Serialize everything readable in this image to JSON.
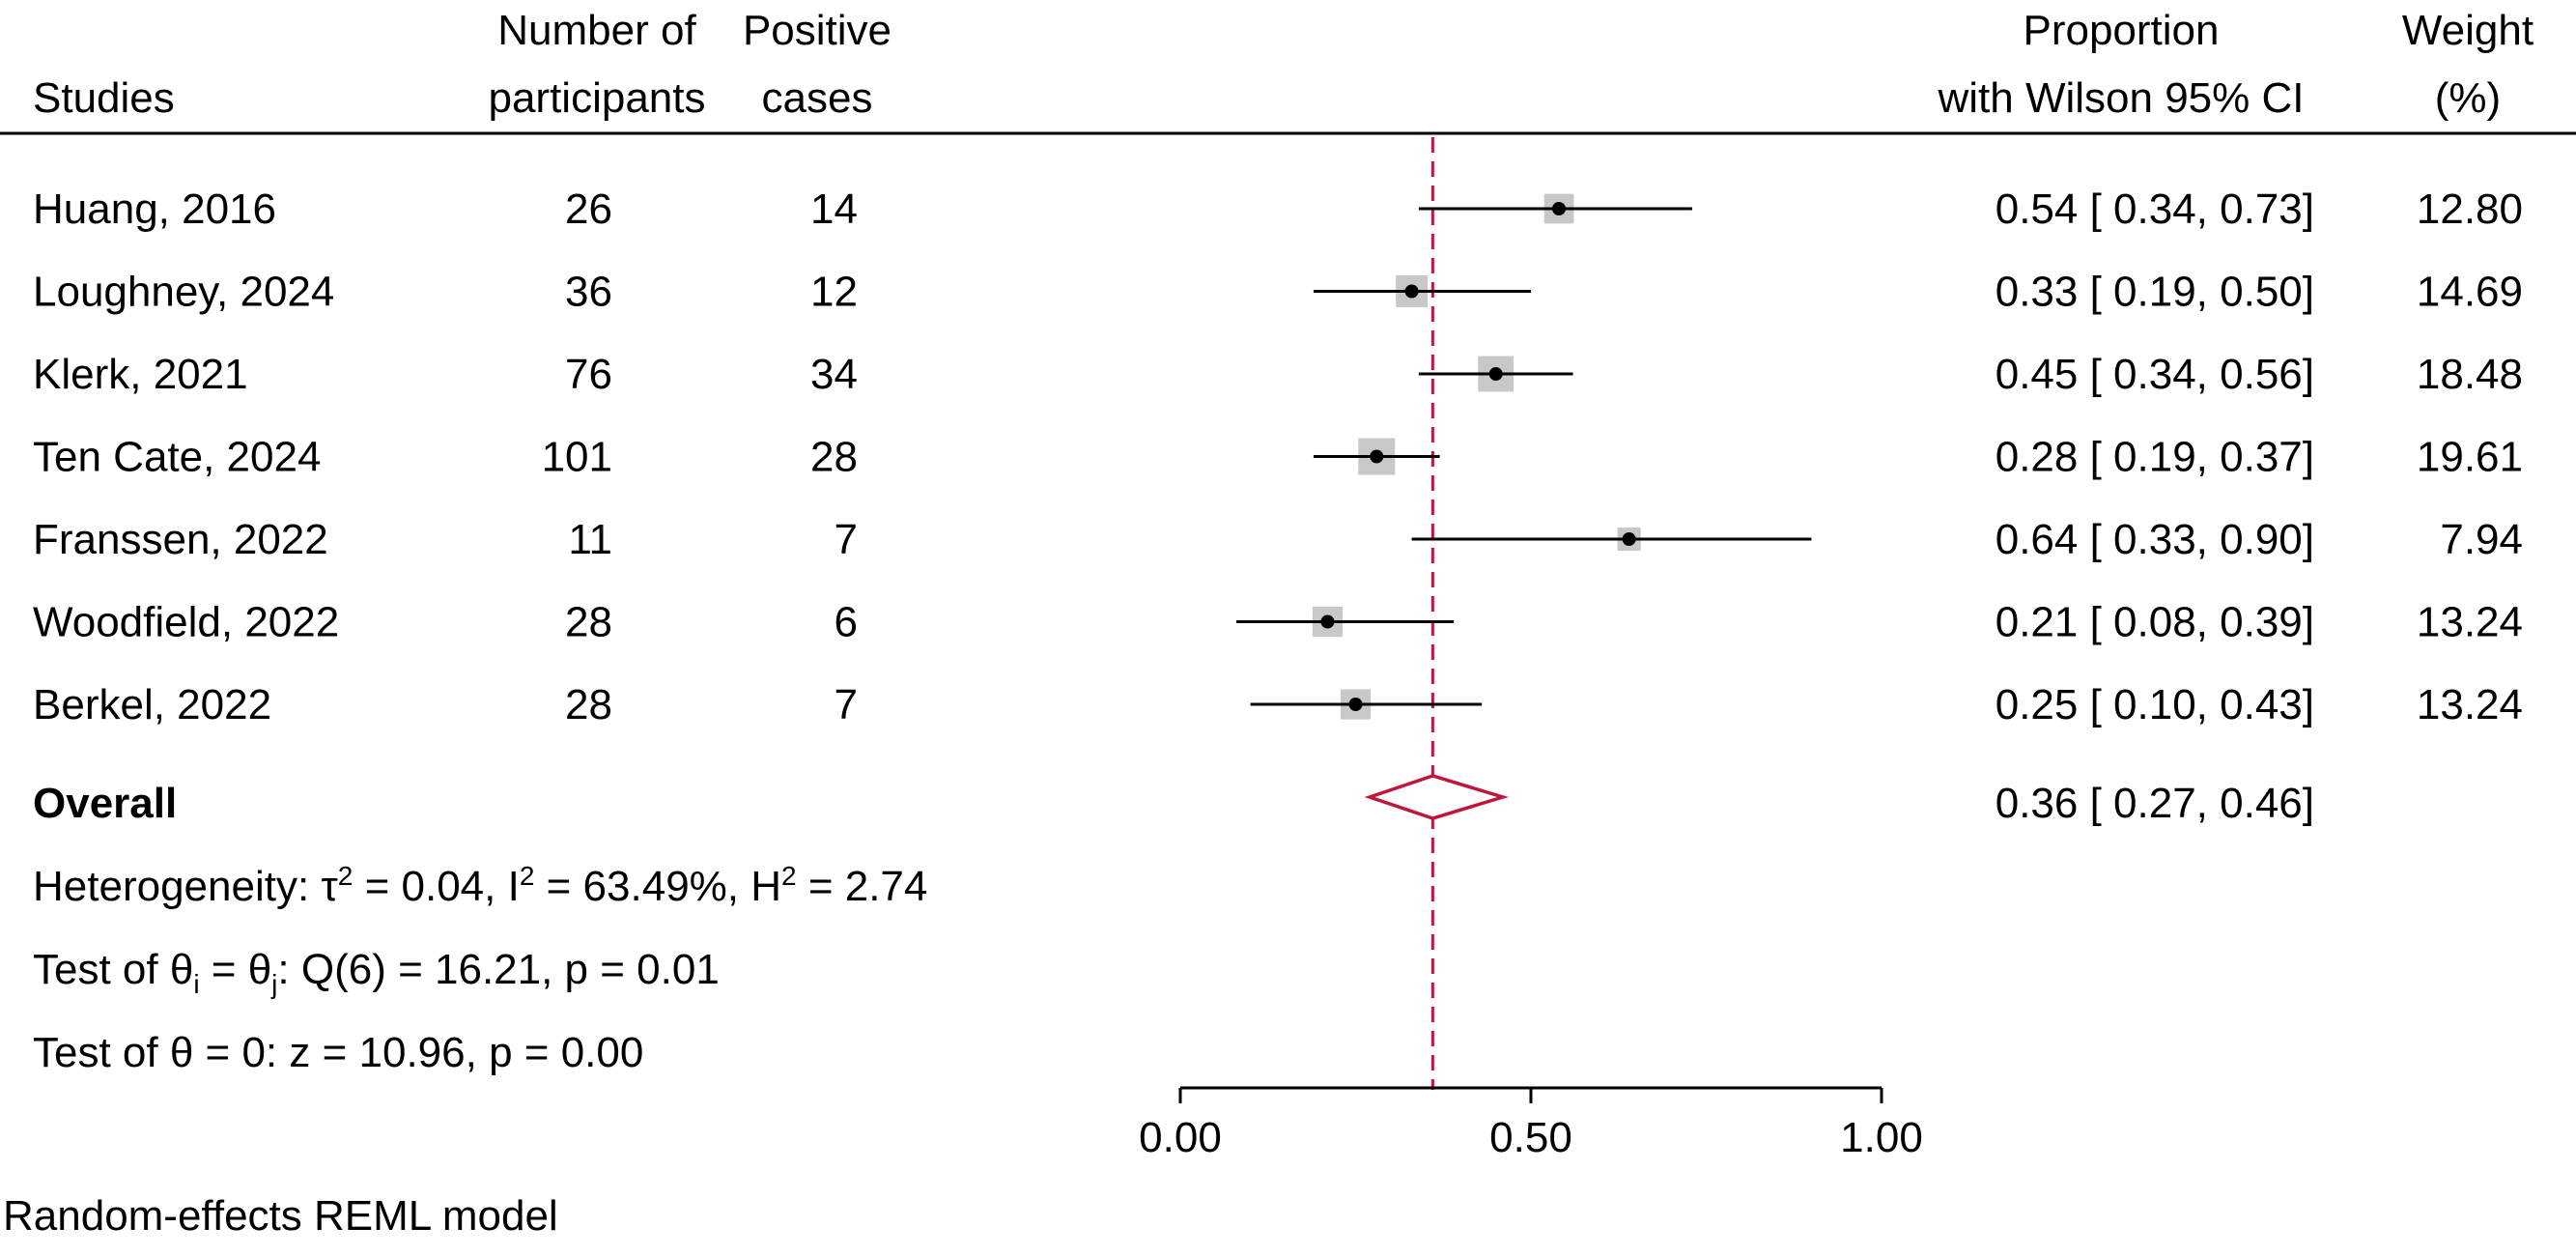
{
  "headers": {
    "studies": "Studies",
    "participants_1": "Number of",
    "participants_2": "participants",
    "cases_1": "Positive",
    "cases_2": "cases",
    "ci_1": "Proportion",
    "ci_2": "with Wilson 95% CI",
    "weight_1": "Weight",
    "weight_2": "(%)"
  },
  "chart_data": {
    "type": "forest",
    "xlim": [
      0,
      1
    ],
    "xticks": [
      0,
      0.5,
      1
    ],
    "xtick_labels": [
      "0.00",
      "0.50",
      "1.00"
    ],
    "reference_line": 0.36,
    "colors": {
      "ci_line": "#000000",
      "weight_box": "#c8c8c8",
      "overall_diamond": "#c0163d",
      "reference_line": "#c0163d"
    },
    "studies": [
      {
        "name": "Huang, 2016",
        "participants": "26",
        "cases": "14",
        "estimate": 0.54,
        "lower": 0.34,
        "upper": 0.73,
        "ci_text": "0.54 [ 0.34,  0.73]",
        "weight": 12.8,
        "weight_text": "12.80"
      },
      {
        "name": "Loughney, 2024",
        "participants": "36",
        "cases": "12",
        "estimate": 0.33,
        "lower": 0.19,
        "upper": 0.5,
        "ci_text": "0.33 [ 0.19,  0.50]",
        "weight": 14.69,
        "weight_text": "14.69"
      },
      {
        "name": "Klerk, 2021",
        "participants": "76",
        "cases": "34",
        "estimate": 0.45,
        "lower": 0.34,
        "upper": 0.56,
        "ci_text": "0.45 [ 0.34,  0.56]",
        "weight": 18.48,
        "weight_text": "18.48"
      },
      {
        "name": "Ten Cate, 2024",
        "participants": "101",
        "cases": "28",
        "estimate": 0.28,
        "lower": 0.19,
        "upper": 0.37,
        "ci_text": "0.28 [ 0.19,  0.37]",
        "weight": 19.61,
        "weight_text": "19.61"
      },
      {
        "name": "Franssen, 2022",
        "participants": "11",
        "cases": "7",
        "estimate": 0.64,
        "lower": 0.33,
        "upper": 0.9,
        "ci_text": "0.64 [ 0.33,  0.90]",
        "weight": 7.94,
        "weight_text": "7.94"
      },
      {
        "name": "Woodfield, 2022",
        "participants": "28",
        "cases": "6",
        "estimate": 0.21,
        "lower": 0.08,
        "upper": 0.39,
        "ci_text": "0.21 [ 0.08,  0.39]",
        "weight": 13.24,
        "weight_text": "13.24"
      },
      {
        "name": "Berkel, 2022",
        "participants": "28",
        "cases": "7",
        "estimate": 0.25,
        "lower": 0.1,
        "upper": 0.43,
        "ci_text": "0.25 [ 0.10,  0.43]",
        "weight": 13.24,
        "weight_text": "13.24"
      }
    ],
    "overall": {
      "label": "Overall",
      "estimate": 0.36,
      "lower": 0.27,
      "upper": 0.46,
      "ci_text": "0.36 [ 0.27,  0.46]"
    }
  },
  "stats": {
    "heterogeneity": {
      "prefix": "Heterogeneity: τ",
      "tau_sup": "2",
      "tau_val": " = 0.04, I",
      "i_sup": "2",
      "i_val": " = 63.49%, H",
      "h_sup": "2",
      "h_val": " = 2.74"
    },
    "test_equal": {
      "prefix": "Test of θ",
      "sub_i": "i",
      "mid": " = θ",
      "sub_j": "j",
      "suffix": ": Q(6) = 16.21, p = 0.01"
    },
    "test_zero": "Test of θ = 0: z = 10.96, p = 0.00"
  },
  "footnote": "Random-effects REML model"
}
